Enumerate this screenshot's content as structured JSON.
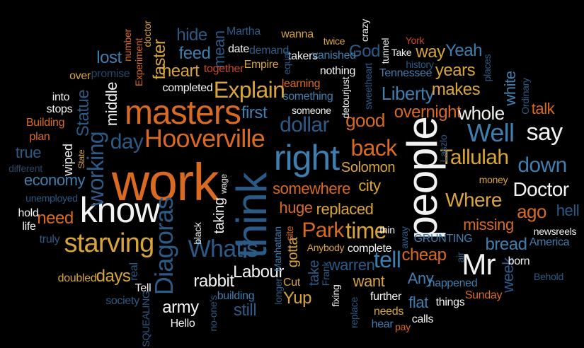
{
  "palette": {
    "orange": "#D96A1F",
    "gold": "#D9A53A",
    "white": "#F2F2F2",
    "blue": "#3F7FAF",
    "darkblue": "#2C5A86",
    "navy": "#274766",
    "red": "#C84A1E"
  },
  "words": [
    {
      "id": "work",
      "text": "work",
      "color": "orange"
    },
    {
      "id": "think",
      "text": "think",
      "color": "darkblue"
    },
    {
      "id": "people",
      "text": "people",
      "color": "white"
    },
    {
      "id": "know",
      "text": "know",
      "color": "white"
    },
    {
      "id": "masters",
      "text": "masters",
      "color": "orange"
    },
    {
      "id": "hooverville",
      "text": "Hooverville",
      "color": "orange"
    },
    {
      "id": "right",
      "text": "right",
      "color": "blue"
    },
    {
      "id": "diagoras",
      "text": "Diagoras",
      "color": "darkblue"
    },
    {
      "id": "starving",
      "text": "starving",
      "color": "gold"
    },
    {
      "id": "whats",
      "text": "What's",
      "color": "darkblue"
    },
    {
      "id": "mr",
      "text": "Mr",
      "color": "white"
    },
    {
      "id": "well",
      "text": "Well",
      "color": "blue"
    },
    {
      "id": "tallulah",
      "text": "Tallulah",
      "color": "gold"
    },
    {
      "id": "doctor",
      "text": "Doctor",
      "color": "white"
    },
    {
      "id": "explain",
      "text": "Explain",
      "color": "gold"
    },
    {
      "id": "dollar",
      "text": "dollar",
      "color": "darkblue"
    },
    {
      "id": "back",
      "text": "back",
      "color": "orange"
    },
    {
      "id": "say",
      "text": "say",
      "color": "white"
    },
    {
      "id": "down",
      "text": "down",
      "color": "blue"
    },
    {
      "id": "where",
      "text": "Where",
      "color": "gold"
    },
    {
      "id": "working",
      "text": "working",
      "color": "darkblue"
    },
    {
      "id": "day",
      "text": "day",
      "color": "darkblue"
    },
    {
      "id": "time",
      "text": "time",
      "color": "gold"
    },
    {
      "id": "park",
      "text": "Park",
      "color": "orange"
    },
    {
      "id": "tell",
      "text": "tell",
      "color": "blue"
    },
    {
      "id": "first",
      "text": "first",
      "color": "blue"
    },
    {
      "id": "good",
      "text": "good",
      "color": "orange"
    },
    {
      "id": "overnight",
      "text": "overnight",
      "color": "orange"
    },
    {
      "id": "whole",
      "text": "whole",
      "color": "white"
    },
    {
      "id": "liberty",
      "text": "Liberty",
      "color": "blue"
    },
    {
      "id": "makes",
      "text": "makes",
      "color": "gold"
    },
    {
      "id": "years",
      "text": "years",
      "color": "gold"
    },
    {
      "id": "yeah",
      "text": "Yeah",
      "color": "blue"
    },
    {
      "id": "way",
      "text": "way",
      "color": "gold"
    },
    {
      "id": "heart",
      "text": "heart",
      "color": "gold"
    },
    {
      "id": "faster",
      "text": "faster",
      "color": "gold"
    },
    {
      "id": "feed",
      "text": "feed",
      "color": "blue"
    },
    {
      "id": "hide",
      "text": "hide",
      "color": "darkblue"
    },
    {
      "id": "mean",
      "text": "mean",
      "color": "darkblue"
    },
    {
      "id": "lost",
      "text": "lost",
      "color": "blue"
    },
    {
      "id": "economy",
      "text": "economy",
      "color": "blue"
    },
    {
      "id": "true",
      "text": "true",
      "color": "darkblue"
    },
    {
      "id": "need",
      "text": "need",
      "color": "orange"
    },
    {
      "id": "statue",
      "text": "Statue",
      "color": "darkblue"
    },
    {
      "id": "middle",
      "text": "middle",
      "color": "white"
    },
    {
      "id": "days",
      "text": "days",
      "color": "gold"
    },
    {
      "id": "army",
      "text": "army",
      "color": "white"
    },
    {
      "id": "rabbit",
      "text": "rabbit",
      "color": "white"
    },
    {
      "id": "labour",
      "text": "Labour",
      "color": "white"
    },
    {
      "id": "still",
      "text": "still",
      "color": "darkblue"
    },
    {
      "id": "yup",
      "text": "Yup",
      "color": "gold"
    },
    {
      "id": "want",
      "text": "want",
      "color": "gold"
    },
    {
      "id": "any",
      "text": "Any",
      "color": "blue"
    },
    {
      "id": "flat",
      "text": "flat",
      "color": "blue"
    },
    {
      "id": "cheap",
      "text": "cheap",
      "color": "orange"
    },
    {
      "id": "bread",
      "text": "bread",
      "color": "blue"
    },
    {
      "id": "ago",
      "text": "ago",
      "color": "orange"
    },
    {
      "id": "talk",
      "text": "talk",
      "color": "orange"
    },
    {
      "id": "white",
      "text": "white",
      "color": "blue"
    },
    {
      "id": "hell",
      "text": "hell",
      "color": "darkblue"
    },
    {
      "id": "week",
      "text": "week",
      "color": "darkblue"
    },
    {
      "id": "missing",
      "text": "missing",
      "color": "orange"
    },
    {
      "id": "replaced",
      "text": "replaced",
      "color": "gold"
    },
    {
      "id": "somewhere",
      "text": "somewhere",
      "color": "orange"
    },
    {
      "id": "huge",
      "text": "huge",
      "color": "orange"
    },
    {
      "id": "city",
      "text": "city",
      "color": "gold"
    },
    {
      "id": "solomon",
      "text": "Solomon",
      "color": "gold"
    },
    {
      "id": "taking",
      "text": "taking",
      "color": "white"
    },
    {
      "id": "gotta",
      "text": "gotta",
      "color": "gold"
    },
    {
      "id": "take",
      "text": "take",
      "color": "darkblue"
    },
    {
      "id": "warren",
      "text": "warren",
      "color": "darkblue"
    },
    {
      "id": "completed",
      "text": "completed",
      "color": "white"
    },
    {
      "id": "together",
      "text": "together",
      "color": "red"
    },
    {
      "id": "empire",
      "text": "Empire",
      "color": "gold"
    },
    {
      "id": "god",
      "text": "God",
      "color": "darkblue"
    },
    {
      "id": "tennessee",
      "text": "Tennessee",
      "color": "blue"
    },
    {
      "id": "nothing",
      "text": "nothing",
      "color": "white"
    },
    {
      "id": "learning",
      "text": "learning",
      "color": "orange"
    },
    {
      "id": "something",
      "text": "something",
      "color": "blue"
    },
    {
      "id": "someone",
      "text": "someone",
      "color": "white"
    },
    {
      "id": "detourjust",
      "text": "detourjust",
      "color": "white"
    },
    {
      "id": "wanna",
      "text": "wanna",
      "color": "gold"
    },
    {
      "id": "martha",
      "text": "Martha",
      "color": "darkblue"
    },
    {
      "id": "date",
      "text": "date",
      "color": "white"
    },
    {
      "id": "demand",
      "text": "demand",
      "color": "darkblue"
    },
    {
      "id": "takers",
      "text": "takers",
      "color": "white"
    },
    {
      "id": "equal",
      "text": "equal",
      "color": "darkblue"
    },
    {
      "id": "vanished",
      "text": "vanished",
      "color": "blue"
    },
    {
      "id": "twice",
      "text": "twice",
      "color": "gold"
    },
    {
      "id": "crazy",
      "text": "crazy",
      "color": "white"
    },
    {
      "id": "tunnel",
      "text": "tunnel",
      "color": "white"
    },
    {
      "id": "take2",
      "text": "Take",
      "color": "white"
    },
    {
      "id": "york",
      "text": "York",
      "color": "red"
    },
    {
      "id": "history",
      "text": "history",
      "color": "darkblue"
    },
    {
      "id": "sweetheart",
      "text": "sweetheart",
      "color": "darkblue"
    },
    {
      "id": "places",
      "text": "places",
      "color": "darkblue"
    },
    {
      "id": "ordinary",
      "text": "Ordinary",
      "color": "darkblue"
    },
    {
      "id": "number",
      "text": "number",
      "color": "orange"
    },
    {
      "id": "experiment",
      "text": "Experiment",
      "color": "orange"
    },
    {
      "id": "doctor2",
      "text": "doctor",
      "color": "gold"
    },
    {
      "id": "promise",
      "text": "promise",
      "color": "navy"
    },
    {
      "id": "over",
      "text": "over",
      "color": "gold"
    },
    {
      "id": "into",
      "text": "into",
      "color": "white"
    },
    {
      "id": "stops",
      "text": "stops",
      "color": "white"
    },
    {
      "id": "building",
      "text": "Building",
      "color": "orange"
    },
    {
      "id": "plan",
      "text": "plan",
      "color": "orange"
    },
    {
      "id": "different",
      "text": "different",
      "color": "navy"
    },
    {
      "id": "wiped",
      "text": "wiped",
      "color": "white"
    },
    {
      "id": "state",
      "text": "State",
      "color": "gold"
    },
    {
      "id": "unemployed",
      "text": "unemployed",
      "color": "darkblue"
    },
    {
      "id": "hold",
      "text": "hold",
      "color": "white"
    },
    {
      "id": "life",
      "text": "life",
      "color": "white"
    },
    {
      "id": "truly",
      "text": "truly",
      "color": "darkblue"
    },
    {
      "id": "doubled",
      "text": "doubled",
      "color": "gold"
    },
    {
      "id": "real",
      "text": "real",
      "color": "darkblue"
    },
    {
      "id": "tell2",
      "text": "Tell",
      "color": "white"
    },
    {
      "id": "society",
      "text": "society",
      "color": "darkblue"
    },
    {
      "id": "squealing",
      "text": "SQUEALING",
      "color": "darkblue"
    },
    {
      "id": "hello",
      "text": "Hello",
      "color": "white"
    },
    {
      "id": "noones",
      "text": "no-one's",
      "color": "darkblue"
    },
    {
      "id": "building2",
      "text": "building",
      "color": "blue"
    },
    {
      "id": "black",
      "text": "black",
      "color": "white"
    },
    {
      "id": "wage",
      "text": "wage",
      "color": "white"
    },
    {
      "id": "manhattan",
      "text": "Manhattan",
      "color": "blue"
    },
    {
      "id": "site",
      "text": "site",
      "color": "orange"
    },
    {
      "id": "anybody",
      "text": "Anybody",
      "color": "gold"
    },
    {
      "id": "cut",
      "text": "Cut",
      "color": "gold"
    },
    {
      "id": "longer",
      "text": "longer",
      "color": "darkblue"
    },
    {
      "id": "frank",
      "text": "Frank",
      "color": "darkblue"
    },
    {
      "id": "fixing",
      "text": "fixing",
      "color": "white"
    },
    {
      "id": "replace",
      "text": "replace",
      "color": "darkblue"
    },
    {
      "id": "complete",
      "text": "complete",
      "color": "white"
    },
    {
      "id": "thin",
      "text": "thin",
      "color": "white"
    },
    {
      "id": "further",
      "text": "further",
      "color": "white"
    },
    {
      "id": "needs",
      "text": "needs",
      "color": "gold"
    },
    {
      "id": "hear",
      "text": "hear",
      "color": "blue"
    },
    {
      "id": "pay",
      "text": "pay",
      "color": "orange"
    },
    {
      "id": "calls",
      "text": "calls",
      "color": "white"
    },
    {
      "id": "things",
      "text": "things",
      "color": "white"
    },
    {
      "id": "happened",
      "text": "happened",
      "color": "blue"
    },
    {
      "id": "sunday",
      "text": "Sunday",
      "color": "orange"
    },
    {
      "id": "away",
      "text": "away",
      "color": "darkblue"
    },
    {
      "id": "grunting",
      "text": "GRUNTING",
      "color": "blue"
    },
    {
      "id": "air",
      "text": "air",
      "color": "darkblue"
    },
    {
      "id": "born",
      "text": "born",
      "color": "white"
    },
    {
      "id": "america",
      "text": "America",
      "color": "blue"
    },
    {
      "id": "behold",
      "text": "Behold",
      "color": "darkblue"
    },
    {
      "id": "newsreels",
      "text": "newsreels",
      "color": "white"
    },
    {
      "id": "money",
      "text": "money",
      "color": "gold"
    },
    {
      "id": "laszlo",
      "text": "Laszlo",
      "color": "darkblue"
    }
  ]
}
